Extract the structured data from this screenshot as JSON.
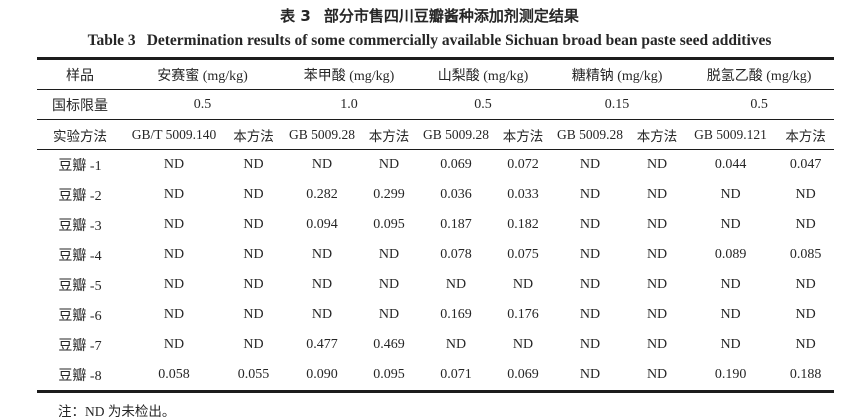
{
  "colors": {
    "background": "#ffffff",
    "text": "#262626",
    "rule": "#1c1c1c"
  },
  "title": {
    "zh_label": "表 3",
    "zh_text": "部分市售四川豆瓣酱种添加剂测定结果",
    "en_label": "Table 3",
    "en_text": "Determination results of some commercially available Sichuan broad bean paste seed additives"
  },
  "table": {
    "sample_header": "样品",
    "limit_row_label": "国标限量",
    "method_row_label": "实验方法",
    "groups": [
      {
        "name": "安赛蜜 (mg/kg)",
        "limit": "0.5",
        "methods": [
          "GB/T 5009.140",
          "本方法"
        ]
      },
      {
        "name": "苯甲酸 (mg/kg)",
        "limit": "1.0",
        "methods": [
          "GB 5009.28",
          "本方法"
        ]
      },
      {
        "name": "山梨酸 (mg/kg)",
        "limit": "0.5",
        "methods": [
          "GB 5009.28",
          "本方法"
        ]
      },
      {
        "name": "糖精钠 (mg/kg)",
        "limit": "0.15",
        "methods": [
          "GB 5009.28",
          "本方法"
        ]
      },
      {
        "name": "脱氢乙酸 (mg/kg)",
        "limit": "0.5",
        "methods": [
          "GB 5009.121",
          "本方法"
        ]
      }
    ],
    "rows": [
      {
        "sample": "豆瓣 -1",
        "values": [
          "ND",
          "ND",
          "ND",
          "ND",
          "0.069",
          "0.072",
          "ND",
          "ND",
          "0.044",
          "0.047"
        ]
      },
      {
        "sample": "豆瓣 -2",
        "values": [
          "ND",
          "ND",
          "0.282",
          "0.299",
          "0.036",
          "0.033",
          "ND",
          "ND",
          "ND",
          "ND"
        ]
      },
      {
        "sample": "豆瓣 -3",
        "values": [
          "ND",
          "ND",
          "0.094",
          "0.095",
          "0.187",
          "0.182",
          "ND",
          "ND",
          "ND",
          "ND"
        ]
      },
      {
        "sample": "豆瓣 -4",
        "values": [
          "ND",
          "ND",
          "ND",
          "ND",
          "0.078",
          "0.075",
          "ND",
          "ND",
          "0.089",
          "0.085"
        ]
      },
      {
        "sample": "豆瓣 -5",
        "values": [
          "ND",
          "ND",
          "ND",
          "ND",
          "ND",
          "ND",
          "ND",
          "ND",
          "ND",
          "ND"
        ]
      },
      {
        "sample": "豆瓣 -6",
        "values": [
          "ND",
          "ND",
          "ND",
          "ND",
          "0.169",
          "0.176",
          "ND",
          "ND",
          "ND",
          "ND"
        ]
      },
      {
        "sample": "豆瓣 -7",
        "values": [
          "ND",
          "ND",
          "0.477",
          "0.469",
          "ND",
          "ND",
          "ND",
          "ND",
          "ND",
          "ND"
        ]
      },
      {
        "sample": "豆瓣 -8",
        "values": [
          "0.058",
          "0.055",
          "0.090",
          "0.095",
          "0.071",
          "0.069",
          "ND",
          "ND",
          "0.190",
          "0.188"
        ]
      }
    ]
  },
  "footnote": "注：ND 为未检出。"
}
